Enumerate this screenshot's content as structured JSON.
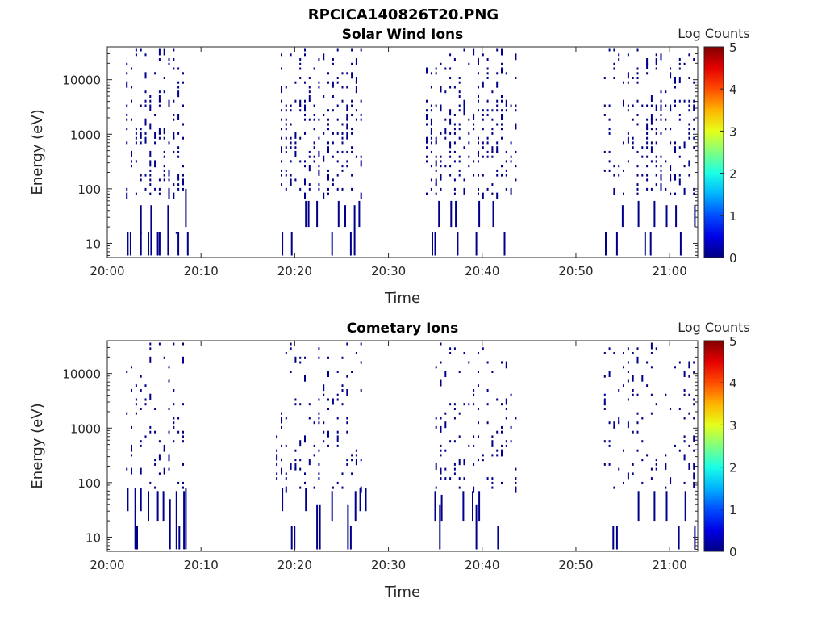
{
  "page": {
    "filename_title": "RPCICA140826T20.PNG"
  },
  "chart_data": [
    {
      "type": "heatmap",
      "title": "Solar Wind Ions",
      "xlabel": "Time",
      "ylabel": "Energy (eV)",
      "y_scale": "log",
      "ylim": [
        5.5,
        40000
      ],
      "xlim": [
        "20:00",
        "21:03"
      ],
      "x_ticks": [
        "20:00",
        "20:10",
        "20:20",
        "20:30",
        "20:40",
        "20:50",
        "21:00"
      ],
      "y_ticks": [
        "10",
        "100",
        "1000",
        "10000"
      ],
      "colorbar": {
        "label": "Log Counts",
        "range": [
          0,
          5
        ],
        "ticks": [
          "0",
          "1",
          "2",
          "3",
          "4",
          "5"
        ],
        "colormap": "jet"
      },
      "grid": false,
      "observation_windows": [
        [
          "20:02",
          "20:08.5"
        ],
        [
          "20:18.5",
          "20:27.5"
        ],
        [
          "20:34",
          "20:44"
        ],
        [
          "20:53",
          "21:03"
        ]
      ],
      "cell_value_log_counts": 0.05,
      "low_energy_events": {
        "t_min": [
          2.1,
          2.4,
          3.5,
          3.5,
          4.3,
          4.6,
          5.3,
          5.5,
          6.4,
          7.3,
          7.5,
          8.3,
          8.5,
          18.6,
          19.6,
          21.1,
          21.4,
          22.3,
          23.9,
          24.6,
          25.3,
          25.9,
          26.3,
          26.8,
          34.6,
          34.9,
          35.3,
          36.6,
          37.1,
          37.3,
          39.3,
          39.6,
          41.1,
          42.3,
          53.1,
          54.3,
          54.9,
          56.6,
          57.3,
          57.9,
          58.3,
          59.6,
          60.6,
          61.1,
          62.6
        ],
        "e_low_eV": [
          6,
          6,
          6,
          20,
          6,
          6,
          6,
          6,
          6,
          20,
          6,
          20,
          6,
          6,
          6,
          20,
          20,
          20,
          6,
          20,
          20,
          6,
          6,
          20,
          6,
          6,
          20,
          20,
          20,
          6,
          6,
          20,
          20,
          6,
          6,
          6,
          20,
          20,
          6,
          6,
          20,
          20,
          20,
          6,
          20
        ],
        "e_high_eV": [
          16,
          16,
          50,
          16,
          16,
          50,
          16,
          16,
          50,
          16,
          16,
          100,
          16,
          16,
          16,
          60,
          60,
          60,
          16,
          60,
          50,
          16,
          50,
          60,
          16,
          16,
          60,
          60,
          60,
          16,
          16,
          60,
          60,
          16,
          16,
          16,
          50,
          60,
          16,
          16,
          60,
          50,
          50,
          16,
          50
        ]
      }
    },
    {
      "type": "heatmap",
      "title": "Cometary Ions",
      "xlabel": "Time",
      "ylabel": "Energy (eV)",
      "y_scale": "log",
      "ylim": [
        5.5,
        40000
      ],
      "xlim": [
        "20:00",
        "21:03"
      ],
      "x_ticks": [
        "20:00",
        "20:10",
        "20:20",
        "20:30",
        "20:40",
        "20:50",
        "21:00"
      ],
      "y_ticks": [
        "10",
        "100",
        "1000",
        "10000"
      ],
      "colorbar": {
        "label": "Log Counts",
        "range": [
          0,
          5
        ],
        "ticks": [
          "0",
          "1",
          "2",
          "3",
          "4",
          "5"
        ],
        "colormap": "jet"
      },
      "grid": false,
      "observation_windows": [
        [
          "20:02",
          "20:08.5"
        ],
        [
          "20:18",
          "20:27.5"
        ],
        [
          "20:35",
          "20:44"
        ],
        [
          "20:53",
          "21:03"
        ]
      ],
      "cell_value_log_counts": 0.05,
      "low_energy_events": {
        "t_min": [
          2.1,
          2.9,
          3.1,
          3.5,
          4.3,
          5.3,
          5.9,
          6.6,
          7.3,
          7.6,
          8.1,
          8.3,
          18.6,
          19.6,
          19.9,
          21.1,
          22.3,
          22.6,
          23.9,
          25.6,
          25.9,
          26.4,
          26.9,
          27.5,
          34.9,
          35.4,
          35.6,
          37.9,
          38.9,
          39.3,
          39.6,
          41.6,
          53.9,
          54.3,
          56.6,
          58.3,
          59.6,
          60.9,
          61.6,
          62.6
        ],
        "e_low_eV": [
          30,
          6,
          6,
          30,
          20,
          20,
          20,
          6,
          6,
          6,
          6,
          6,
          30,
          6,
          6,
          30,
          6,
          6,
          20,
          6,
          6,
          20,
          30,
          30,
          20,
          6,
          20,
          20,
          20,
          6,
          20,
          6,
          6,
          6,
          20,
          20,
          20,
          6,
          20,
          6
        ],
        "e_high_eV": [
          80,
          80,
          16,
          80,
          70,
          70,
          70,
          50,
          70,
          16,
          70,
          80,
          80,
          16,
          16,
          80,
          40,
          40,
          70,
          40,
          16,
          70,
          80,
          80,
          70,
          40,
          60,
          70,
          70,
          40,
          70,
          16,
          16,
          16,
          70,
          70,
          70,
          16,
          70,
          16
        ]
      }
    }
  ]
}
